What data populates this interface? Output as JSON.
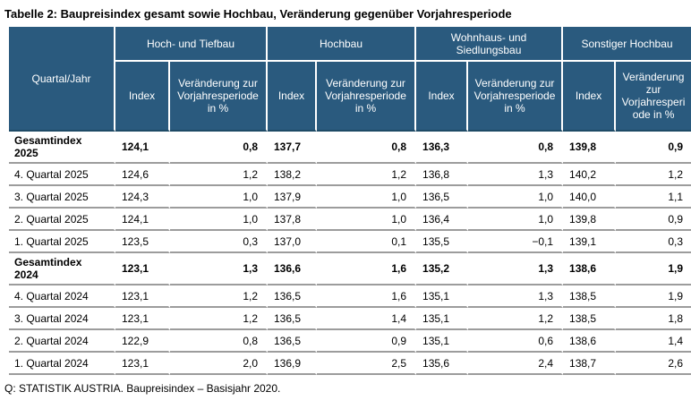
{
  "title": "Tabelle 2: Baupreisindex gesamt sowie Hochbau, Veränderung gegenüber Vorjahresperiode",
  "footer": "Q: STATISTIK AUSTRIA. Baupreisindex – Basisjahr 2020.",
  "colors": {
    "header_bg": "#2A5A7E",
    "header_text": "#FFFFFF",
    "row_border": "#9C9C9C",
    "body_text": "#000000"
  },
  "table": {
    "corner_header": "Quartal/Jahr",
    "groups": [
      {
        "label": "Hoch- und Tiefbau",
        "sub": [
          "Index",
          "Veränderung zur Vorjahresperiode in %"
        ]
      },
      {
        "label": "Hochbau",
        "sub": [
          "Index",
          "Veränderung zur Vorjahresperiode in %"
        ]
      },
      {
        "label": "Wohnhaus- und Siedlungsbau",
        "sub": [
          "Index",
          "Veränderung zur Vorjahresperiode in %"
        ]
      },
      {
        "label": "Sonstiger Hochbau",
        "sub": [
          "Index",
          "Veränderung zur Vorjahresperiode in %"
        ]
      }
    ],
    "rows": [
      {
        "label": "Gesamtindex 2025",
        "type": "summary",
        "values": [
          "124,1",
          "0,8",
          "137,7",
          "0,8",
          "136,3",
          "0,8",
          "139,8",
          "0,9"
        ]
      },
      {
        "label": "4. Quartal 2025",
        "type": "quarter",
        "values": [
          "124,6",
          "1,2",
          "138,2",
          "1,2",
          "136,8",
          "1,3",
          "140,2",
          "1,2"
        ]
      },
      {
        "label": "3. Quartal 2025",
        "type": "quarter",
        "values": [
          "124,3",
          "1,0",
          "137,9",
          "1,0",
          "136,5",
          "1,0",
          "140,0",
          "1,1"
        ]
      },
      {
        "label": "2. Quartal 2025",
        "type": "quarter",
        "values": [
          "124,1",
          "1,0",
          "137,8",
          "1,0",
          "136,4",
          "1,0",
          "139,8",
          "0,9"
        ]
      },
      {
        "label": "1. Quartal 2025",
        "type": "quarter",
        "values": [
          "123,5",
          "0,3",
          "137,0",
          "0,1",
          "135,5",
          "−0,1",
          "139,1",
          "0,3"
        ]
      },
      {
        "label": "Gesamtindex 2024",
        "type": "summary",
        "values": [
          "123,1",
          "1,3",
          "136,6",
          "1,6",
          "135,2",
          "1,3",
          "138,6",
          "1,9"
        ]
      },
      {
        "label": "4. Quartal 2024",
        "type": "quarter",
        "values": [
          "123,1",
          "1,2",
          "136,5",
          "1,6",
          "135,1",
          "1,3",
          "138,5",
          "1,9"
        ]
      },
      {
        "label": "3. Quartal 2024",
        "type": "quarter",
        "values": [
          "123,1",
          "1,2",
          "136,5",
          "1,4",
          "135,1",
          "1,2",
          "138,5",
          "1,8"
        ]
      },
      {
        "label": "2. Quartal 2024",
        "type": "quarter",
        "values": [
          "122,9",
          "0,8",
          "136,5",
          "0,9",
          "135,1",
          "0,6",
          "138,6",
          "1,4"
        ]
      },
      {
        "label": "1. Quartal 2024",
        "type": "quarter",
        "values": [
          "123,1",
          "2,0",
          "136,9",
          "2,5",
          "135,6",
          "2,4",
          "138,7",
          "2,6"
        ]
      }
    ]
  }
}
